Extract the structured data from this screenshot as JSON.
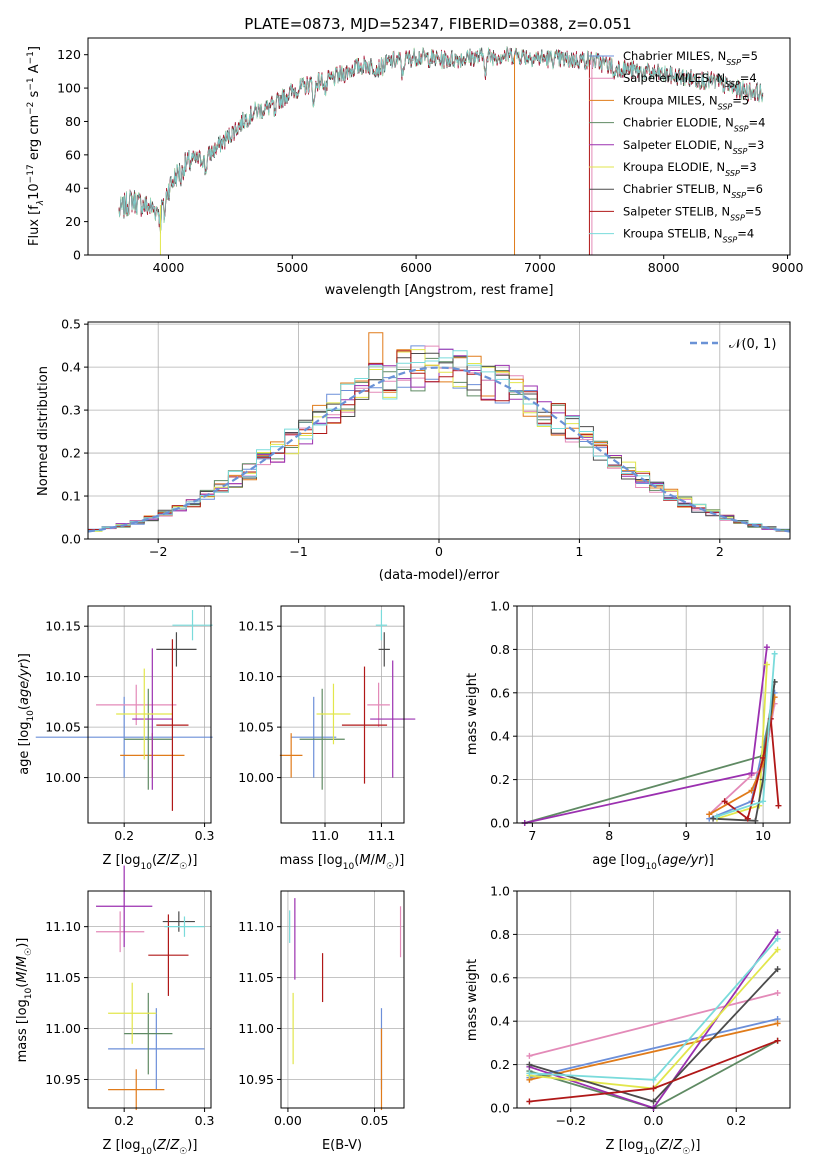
{
  "chart_data": [
    {
      "id": "spectrum",
      "type": "line",
      "title": "PLATE=0873, MJD=52347, FIBERID=0388, z=0.051",
      "xlabel": "wavelength [Angstrom, rest frame]",
      "ylabel": "Flux [f_λ 10^-17 erg cm^-2 s^-1 A^-1]",
      "xlim": [
        3350,
        9020
      ],
      "ylim": [
        0,
        130
      ],
      "xticks": [
        4000,
        5000,
        6000,
        7000,
        8000,
        9000
      ],
      "yticks": [
        0,
        20,
        40,
        60,
        80,
        100,
        120
      ],
      "grid": false,
      "legend_position": "upper-right",
      "legend": [
        {
          "name": "Chabrier MILES",
          "nssp": 5,
          "color": "#6c8fd9"
        },
        {
          "name": "Salpeter MILES",
          "nssp": 4,
          "color": "#e38ab8"
        },
        {
          "name": "Kroupa MILES",
          "nssp": 5,
          "color": "#e07b1a"
        },
        {
          "name": "Chabrier ELODIE",
          "nssp": 4,
          "color": "#5f8a63"
        },
        {
          "name": "Salpeter ELODIE",
          "nssp": 3,
          "color": "#9b30b0"
        },
        {
          "name": "Kroupa ELODIE",
          "nssp": 3,
          "color": "#e2e64c"
        },
        {
          "name": "Chabrier STELIB",
          "nssp": 6,
          "color": "#4b4b4b"
        },
        {
          "name": "Salpeter STELIB",
          "nssp": 5,
          "color": "#b01818"
        },
        {
          "name": "Kroupa STELIB",
          "nssp": 4,
          "color": "#7adbdb"
        }
      ],
      "nssp_prefix": "N",
      "nssp_sub": "SSP",
      "spectrum_knots": [
        [
          3600,
          26
        ],
        [
          3700,
          33
        ],
        [
          3800,
          30
        ],
        [
          3900,
          27
        ],
        [
          3960,
          32
        ],
        [
          4000,
          40
        ],
        [
          4100,
          52
        ],
        [
          4200,
          57
        ],
        [
          4300,
          58
        ],
        [
          4400,
          65
        ],
        [
          4500,
          72
        ],
        [
          4600,
          80
        ],
        [
          4700,
          86
        ],
        [
          4800,
          88
        ],
        [
          4900,
          93
        ],
        [
          5000,
          98
        ],
        [
          5100,
          101
        ],
        [
          5200,
          104
        ],
        [
          5300,
          105
        ],
        [
          5400,
          108
        ],
        [
          5500,
          112
        ],
        [
          5600,
          114
        ],
        [
          5700,
          112
        ],
        [
          5800,
          116
        ],
        [
          5900,
          117
        ],
        [
          6000,
          119
        ],
        [
          6200,
          117
        ],
        [
          6400,
          118
        ],
        [
          6600,
          119
        ],
        [
          6800,
          120
        ],
        [
          7000,
          118
        ],
        [
          7200,
          117
        ],
        [
          7400,
          117
        ],
        [
          7600,
          113
        ],
        [
          7800,
          110
        ],
        [
          8000,
          108
        ],
        [
          8200,
          106
        ],
        [
          8400,
          104
        ],
        [
          8600,
          99
        ],
        [
          8800,
          97
        ]
      ],
      "model_drop_wavelengths": [
        3935,
        6795,
        7400,
        7420
      ]
    },
    {
      "id": "residuals",
      "type": "line",
      "xlabel": "(data-model)/error",
      "ylabel": "Normed distribution",
      "xlim": [
        -2.5,
        2.5
      ],
      "ylim": [
        0,
        0.505
      ],
      "xticks": [
        -2,
        -1,
        0,
        1,
        2
      ],
      "yticks": [
        0.0,
        0.1,
        0.2,
        0.3,
        0.4,
        0.5
      ],
      "grid": true,
      "legend_position": "upper-right",
      "reference_label": "𝒩(0, 1)",
      "reference_color": "#6a92d6",
      "bin_width": 0.1
    },
    {
      "id": "age-vs-metallicity",
      "type": "scatter",
      "xlabel": "Z [log10(Z/Z☉)]",
      "ylabel": "age  [log10(age/yr)]",
      "xlim": [
        0.155,
        0.308
      ],
      "ylim": [
        9.955,
        10.17
      ],
      "xticks": [
        0.2,
        0.3
      ],
      "yticks": [
        10.0,
        10.05,
        10.1,
        10.15
      ],
      "grid": true,
      "points": [
        {
          "x": 0.2,
          "y": 10.04,
          "xerr": 0.11,
          "yerr": 0.04,
          "color": "#6c8fd9"
        },
        {
          "x": 0.215,
          "y": 10.072,
          "xerr": 0.05,
          "yerr": 0.02,
          "color": "#e38ab8"
        },
        {
          "x": 0.235,
          "y": 10.022,
          "xerr": 0.04,
          "yerr": 0.022,
          "color": "#e07b1a"
        },
        {
          "x": 0.23,
          "y": 10.038,
          "xerr": 0.03,
          "yerr": 0.05,
          "color": "#5f8a63"
        },
        {
          "x": 0.235,
          "y": 10.058,
          "xerr": 0.025,
          "yerr": 0.07,
          "color": "#9b30b0"
        },
        {
          "x": 0.225,
          "y": 10.063,
          "xerr": 0.035,
          "yerr": 0.045,
          "color": "#e2e64c"
        },
        {
          "x": 0.265,
          "y": 10.127,
          "xerr": 0.025,
          "yerr": 0.017,
          "color": "#4b4b4b"
        },
        {
          "x": 0.26,
          "y": 10.052,
          "xerr": 0.02,
          "yerr": 0.085,
          "color": "#b01818"
        },
        {
          "x": 0.285,
          "y": 10.151,
          "xerr": 0.025,
          "yerr": 0.015,
          "color": "#7adbdb"
        }
      ]
    },
    {
      "id": "age-vs-mass",
      "type": "scatter",
      "xlabel": "mass [log10(M/M☉)]",
      "ylabel": "",
      "xlim": [
        10.922,
        11.14
      ],
      "ylim": [
        9.955,
        10.17
      ],
      "xticks": [
        11.0,
        11.1
      ],
      "yticks": [
        10.0,
        10.05,
        10.1,
        10.15
      ],
      "grid": true,
      "points": [
        {
          "x": 10.98,
          "y": 10.04,
          "xerr": 0.04,
          "yerr": 0.04,
          "color": "#6c8fd9"
        },
        {
          "x": 11.095,
          "y": 10.072,
          "xerr": 0.02,
          "yerr": 0.022,
          "color": "#e38ab8"
        },
        {
          "x": 10.94,
          "y": 10.022,
          "xerr": 0.02,
          "yerr": 0.022,
          "color": "#e07b1a"
        },
        {
          "x": 10.995,
          "y": 10.038,
          "xerr": 0.04,
          "yerr": 0.05,
          "color": "#5f8a63"
        },
        {
          "x": 11.12,
          "y": 10.058,
          "xerr": 0.04,
          "yerr": 0.058,
          "color": "#9b30b0"
        },
        {
          "x": 11.015,
          "y": 10.063,
          "xerr": 0.03,
          "yerr": 0.03,
          "color": "#e2e64c"
        },
        {
          "x": 11.105,
          "y": 10.127,
          "xerr": 0.01,
          "yerr": 0.017,
          "color": "#4b4b4b"
        },
        {
          "x": 11.07,
          "y": 10.052,
          "xerr": 0.04,
          "yerr": 0.058,
          "color": "#b01818"
        },
        {
          "x": 11.1,
          "y": 10.151,
          "xerr": 0.01,
          "yerr": 0.015,
          "color": "#7adbdb"
        }
      ]
    },
    {
      "id": "weight-vs-age",
      "type": "line",
      "xlabel": "age  [log10(age/yr)]",
      "ylabel": "mass weight",
      "xlim": [
        6.8,
        10.35
      ],
      "ylim": [
        0,
        1.0
      ],
      "xticks": [
        7,
        8,
        9,
        10
      ],
      "yticks": [
        0.0,
        0.2,
        0.4,
        0.6,
        0.8,
        1.0
      ],
      "grid": true,
      "series": [
        {
          "color": "#6c8fd9",
          "points": [
            [
              9.3,
              0.02
            ],
            [
              9.85,
              0.1
            ],
            [
              10.0,
              0.35
            ],
            [
              10.15,
              0.6
            ]
          ]
        },
        {
          "color": "#e38ab8",
          "points": [
            [
              9.3,
              0.04
            ],
            [
              9.85,
              0.22
            ],
            [
              10.0,
              0.25
            ],
            [
              10.15,
              0.55
            ]
          ]
        },
        {
          "color": "#e07b1a",
          "points": [
            [
              9.3,
              0.04
            ],
            [
              9.85,
              0.15
            ],
            [
              10.0,
              0.27
            ],
            [
              10.15,
              0.58
            ]
          ]
        },
        {
          "color": "#5f8a63",
          "points": [
            [
              6.9,
              0.0
            ],
            [
              10.0,
              0.31
            ],
            [
              10.15,
              0.65
            ]
          ]
        },
        {
          "color": "#9b30b0",
          "points": [
            [
              6.9,
              0.0
            ],
            [
              9.85,
              0.23
            ],
            [
              10.05,
              0.81
            ]
          ]
        },
        {
          "color": "#e2e64c",
          "points": [
            [
              9.4,
              0.02
            ],
            [
              9.95,
              0.08
            ],
            [
              10.05,
              0.73
            ]
          ]
        },
        {
          "color": "#4b4b4b",
          "points": [
            [
              9.35,
              0.02
            ],
            [
              9.9,
              0.01
            ],
            [
              10.0,
              0.2
            ],
            [
              10.15,
              0.65
            ]
          ]
        },
        {
          "color": "#b01818",
          "points": [
            [
              9.5,
              0.1
            ],
            [
              9.8,
              0.02
            ],
            [
              10.0,
              0.3
            ],
            [
              10.1,
              0.48
            ],
            [
              10.2,
              0.08
            ]
          ]
        },
        {
          "color": "#7adbdb",
          "points": [
            [
              9.4,
              0.03
            ],
            [
              10.0,
              0.1
            ],
            [
              10.15,
              0.78
            ]
          ]
        }
      ]
    },
    {
      "id": "mass-vs-metallicity",
      "type": "scatter",
      "xlabel": "Z [log10(Z/Z☉)]",
      "ylabel": "mass [log10(M/M☉)]",
      "xlim": [
        0.155,
        0.308
      ],
      "ylim": [
        10.922,
        11.135
      ],
      "xticks": [
        0.2,
        0.3
      ],
      "yticks": [
        10.95,
        11.0,
        11.05,
        11.1
      ],
      "grid": true,
      "points": [
        {
          "x": 0.24,
          "y": 10.98,
          "xerr": 0.06,
          "yerr": 0.04,
          "color": "#6c8fd9"
        },
        {
          "x": 0.195,
          "y": 11.095,
          "xerr": 0.03,
          "yerr": 0.02,
          "color": "#e38ab8"
        },
        {
          "x": 0.215,
          "y": 10.94,
          "xerr": 0.035,
          "yerr": 0.02,
          "color": "#e07b1a"
        },
        {
          "x": 0.23,
          "y": 10.995,
          "xerr": 0.03,
          "yerr": 0.04,
          "color": "#5f8a63"
        },
        {
          "x": 0.2,
          "y": 11.12,
          "xerr": 0.035,
          "yerr": 0.04,
          "color": "#9b30b0"
        },
        {
          "x": 0.21,
          "y": 11.015,
          "xerr": 0.03,
          "yerr": 0.03,
          "color": "#e2e64c"
        },
        {
          "x": 0.268,
          "y": 11.105,
          "xerr": 0.02,
          "yerr": 0.01,
          "color": "#4b4b4b"
        },
        {
          "x": 0.255,
          "y": 11.072,
          "xerr": 0.025,
          "yerr": 0.04,
          "color": "#b01818"
        },
        {
          "x": 0.275,
          "y": 11.1,
          "xerr": 0.025,
          "yerr": 0.01,
          "color": "#7adbdb"
        }
      ]
    },
    {
      "id": "mass-vs-extinction",
      "type": "scatter",
      "xlabel": "E(B-V)",
      "ylabel": "",
      "xlim": [
        -0.004,
        0.067
      ],
      "ylim": [
        10.922,
        11.135
      ],
      "xticks": [
        0.0,
        0.05
      ],
      "yticks": [
        10.95,
        11.0,
        11.05,
        11.1
      ],
      "grid": true,
      "points": [
        {
          "x": 0.054,
          "y": 10.98,
          "xerr": 0,
          "yerr": 0.04,
          "color": "#6c8fd9"
        },
        {
          "x": 0.065,
          "y": 11.095,
          "xerr": 0,
          "yerr": 0.025,
          "color": "#e38ab8"
        },
        {
          "x": 0.054,
          "y": 10.96,
          "xerr": 0,
          "yerr": 0.04,
          "color": "#e07b1a"
        },
        {
          "x": 0.004,
          "y": 11.088,
          "xerr": 0,
          "yerr": 0.04,
          "color": "#9b30b0"
        },
        {
          "x": 0.003,
          "y": 11.0,
          "xerr": 0,
          "yerr": 0.035,
          "color": "#e2e64c"
        },
        {
          "x": 0.02,
          "y": 11.05,
          "xerr": 0,
          "yerr": 0.024,
          "color": "#b01818"
        },
        {
          "x": 0.001,
          "y": 11.1,
          "xerr": 0,
          "yerr": 0.016,
          "color": "#7adbdb"
        }
      ]
    },
    {
      "id": "weight-vs-metallicity",
      "type": "line",
      "xlabel": "Z [log10(Z/Z☉)]",
      "ylabel": "mass weight",
      "xlim": [
        -0.33,
        0.33
      ],
      "ylim": [
        0,
        1.0
      ],
      "xticks": [
        -0.2,
        0.0,
        0.2
      ],
      "yticks": [
        0.0,
        0.2,
        0.4,
        0.6,
        0.8,
        1.0
      ],
      "grid": true,
      "series": [
        {
          "color": "#6c8fd9",
          "points": [
            [
              -0.3,
              0.14
            ],
            [
              0.3,
              0.41
            ]
          ]
        },
        {
          "color": "#e38ab8",
          "points": [
            [
              -0.3,
              0.24
            ],
            [
              0.3,
              0.53
            ]
          ]
        },
        {
          "color": "#e07b1a",
          "points": [
            [
              -0.3,
              0.13
            ],
            [
              0.3,
              0.39
            ]
          ]
        },
        {
          "color": "#5f8a63",
          "points": [
            [
              -0.3,
              0.17
            ],
            [
              0.0,
              0.0
            ],
            [
              0.3,
              0.31
            ]
          ]
        },
        {
          "color": "#9b30b0",
          "points": [
            [
              -0.3,
              0.19
            ],
            [
              0.0,
              0.0
            ],
            [
              0.3,
              0.81
            ]
          ]
        },
        {
          "color": "#e2e64c",
          "points": [
            [
              -0.3,
              0.15
            ],
            [
              0.0,
              0.09
            ],
            [
              0.3,
              0.73
            ]
          ]
        },
        {
          "color": "#4b4b4b",
          "points": [
            [
              -0.3,
              0.2
            ],
            [
              0.0,
              0.03
            ],
            [
              0.3,
              0.64
            ]
          ]
        },
        {
          "color": "#b01818",
          "points": [
            [
              -0.3,
              0.03
            ],
            [
              0.0,
              0.09
            ],
            [
              0.3,
              0.31
            ]
          ]
        },
        {
          "color": "#7adbdb",
          "points": [
            [
              -0.3,
              0.16
            ],
            [
              0.0,
              0.13
            ],
            [
              0.3,
              0.78
            ]
          ]
        }
      ]
    }
  ]
}
